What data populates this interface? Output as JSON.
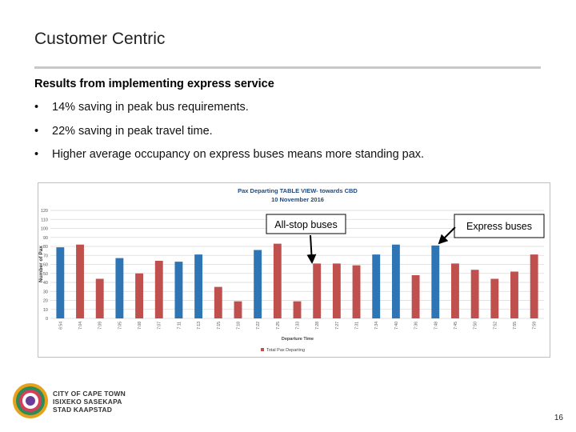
{
  "slide": {
    "title": "Customer Centric",
    "subtitle": "Results from implementing express service",
    "bullets": [
      "14% saving in peak bus requirements.",
      "22% saving in peak travel time.",
      "Higher average occupancy on express buses means more standing pax."
    ],
    "logo": [
      "CITY OF CAPE TOWN",
      "ISIXEKO SASEKAPA",
      "STAD KAAPSTAD"
    ],
    "page_number": "16"
  },
  "chart_data": {
    "type": "bar",
    "title": "Pax Departing TABLE VIEW- towards CBD",
    "subtitle": "10 November 2016",
    "x_label": "Departure Time",
    "y_label": "Number of Pax",
    "categories": [
      "6:54",
      "7:04",
      "7:09",
      "7:05",
      "7:08",
      "7:07",
      "7:11",
      "7:13",
      "7:15",
      "7:18",
      "7:22",
      "7:25",
      "7:33",
      "7:28",
      "7:27",
      "7:31",
      "7:34",
      "7:40",
      "7:36",
      "7:48",
      "7:45",
      "7:50",
      "7:52",
      "7:55",
      "7:59"
    ],
    "series": [
      {
        "name": "Total Pax Departing",
        "color": "#c0504d",
        "values": [
          79,
          82,
          44,
          67,
          50,
          64,
          63,
          71,
          35,
          19,
          76,
          83,
          19,
          61,
          61,
          59,
          71,
          82,
          48,
          81,
          61,
          54,
          44,
          52,
          71
        ],
        "colors": [
          "#2e75b6",
          "#c0504d",
          "#c0504d",
          "#2e75b6",
          "#c0504d",
          "#c0504d",
          "#2e75b6",
          "#2e75b6",
          "#c0504d",
          "#c0504d",
          "#2e75b6",
          "#c0504d",
          "#c0504d",
          "#c0504d",
          "#c0504d",
          "#c0504d",
          "#2e75b6",
          "#2e75b6",
          "#c0504d",
          "#2e75b6",
          "#c0504d",
          "#c0504d",
          "#c0504d",
          "#c0504d",
          "#c0504d"
        ]
      }
    ],
    "ylim": [
      0,
      120
    ],
    "yticks": [
      0,
      10,
      20,
      30,
      40,
      50,
      60,
      70,
      80,
      90,
      100,
      110,
      120
    ],
    "grid": true,
    "annotations": [
      "All-stop buses",
      "Express buses"
    ]
  }
}
